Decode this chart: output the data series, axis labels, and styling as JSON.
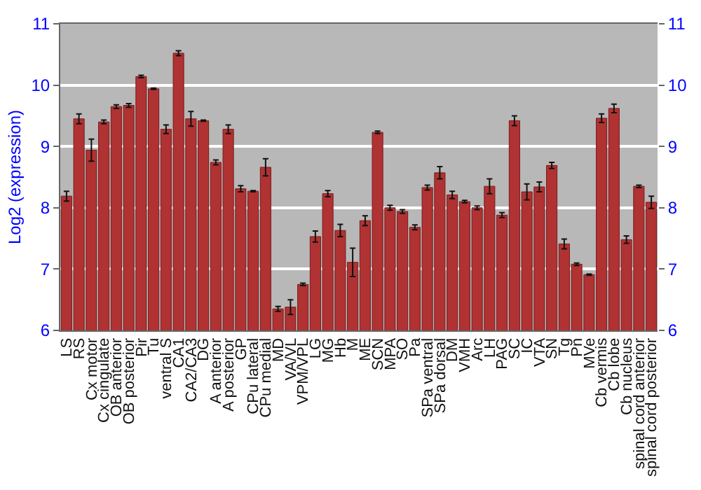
{
  "chart_data": {
    "type": "bar",
    "ylabel": "Log2 (expression)",
    "categories": [
      "LS",
      "RS",
      "Cx motor",
      "Cx cingulate",
      "OB anterior",
      "OB posterior",
      "Pir",
      "Tu",
      "ventral S",
      "CA1",
      "CA2/CA3",
      "DG",
      "A anterior",
      "A posterior",
      "GP",
      "CPu lateral",
      "CPu medial",
      "MD",
      "VA/VL",
      "VPM/VPL",
      "LG",
      "MG",
      "Hb",
      "M",
      "ME",
      "SCN",
      "MPA",
      "SO",
      "Pa",
      "SPa ventral",
      "SPa dorsal",
      "DM",
      "VMH",
      "Arc",
      "LH",
      "PAG",
      "SC",
      "IC",
      "VTA",
      "SN",
      "Tg",
      "Pn",
      "MVe",
      "Cb vermis",
      "Cb lobe",
      "Cb nucleus",
      "spinal cord anterior",
      "spinal cord posterior"
    ],
    "values": [
      8.19,
      9.45,
      8.94,
      9.4,
      9.65,
      9.67,
      10.14,
      9.94,
      9.28,
      10.52,
      9.45,
      9.42,
      8.74,
      9.28,
      8.31,
      8.27,
      8.66,
      6.35,
      6.38,
      6.75,
      7.53,
      8.23,
      7.63,
      7.11,
      7.79,
      9.23,
      8.0,
      7.94,
      7.68,
      8.33,
      8.57,
      8.21,
      8.1,
      8.0,
      8.35,
      7.88,
      9.42,
      8.26,
      8.34,
      8.69,
      7.41,
      7.08,
      6.91,
      9.46,
      9.62,
      7.48,
      8.35,
      8.09
    ],
    "errors": [
      0.08,
      0.08,
      0.18,
      0.03,
      0.03,
      0.03,
      0.02,
      0.01,
      0.07,
      0.04,
      0.12,
      0.01,
      0.04,
      0.07,
      0.05,
      0.01,
      0.14,
      0.04,
      0.12,
      0.02,
      0.09,
      0.05,
      0.1,
      0.23,
      0.08,
      0.02,
      0.04,
      0.03,
      0.04,
      0.04,
      0.1,
      0.06,
      0.02,
      0.03,
      0.12,
      0.04,
      0.08,
      0.13,
      0.08,
      0.05,
      0.08,
      0.02,
      0.01,
      0.07,
      0.07,
      0.06,
      0.02,
      0.1
    ],
    "color": "#b03232",
    "ylim": [
      6,
      11
    ],
    "yticks": [
      6,
      7,
      8,
      9,
      10,
      11
    ],
    "y2lim": [
      6,
      11
    ],
    "y2ticks": [
      6,
      7,
      8,
      9,
      10,
      11
    ],
    "grid": "y"
  }
}
